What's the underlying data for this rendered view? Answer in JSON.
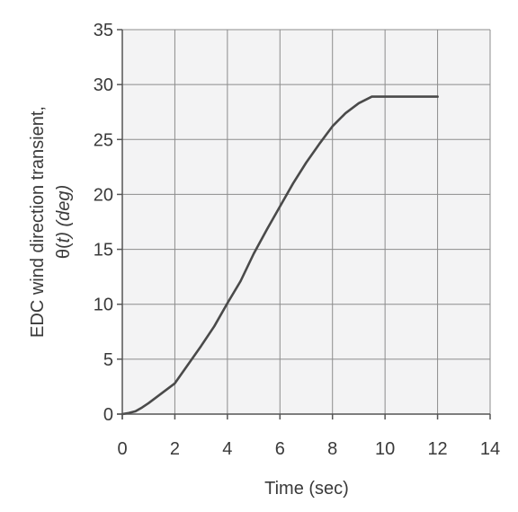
{
  "chart_data": {
    "type": "line",
    "xlabel": "Time  (sec)",
    "ylabel_line1": "EDC wind direction transient,",
    "ylabel_line2_symbol": "θ(",
    "ylabel_line2_var": "t",
    "ylabel_line2_unit": ") (deg)",
    "xlim": [
      0,
      14
    ],
    "ylim": [
      0,
      35
    ],
    "x_ticks": [
      0,
      2,
      4,
      6,
      8,
      10,
      12,
      14
    ],
    "y_ticks": [
      0,
      5,
      10,
      15,
      20,
      25,
      30,
      35
    ],
    "grid": true,
    "series": [
      {
        "x": [
          0,
          0.25,
          0.5,
          0.75,
          1,
          1.5,
          2,
          2.5,
          3,
          3.5,
          4,
          4.5,
          5,
          5.5,
          6,
          6.5,
          7,
          7.5,
          8,
          8.5,
          9,
          9.5,
          10,
          11,
          12
        ],
        "y": [
          0,
          0.1,
          0.25,
          0.6,
          1.0,
          1.9,
          2.8,
          4.5,
          6.2,
          8.0,
          10.1,
          12.1,
          14.6,
          16.8,
          18.9,
          21.0,
          22.9,
          24.6,
          26.2,
          27.4,
          28.3,
          28.9,
          28.9,
          28.9,
          28.9
        ]
      }
    ],
    "colors": {
      "line": "#4a4a4a",
      "grid": "#8c8c8c",
      "plot_background": "#f3f3f4",
      "axis": "#555555",
      "text": "#3a3a3a"
    }
  }
}
